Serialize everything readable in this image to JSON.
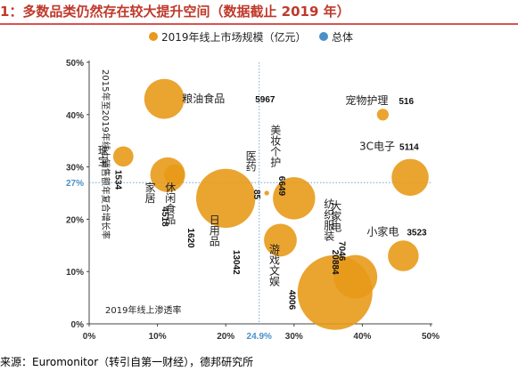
{
  "header": {
    "title": "1：多数品类仍然存在较大提升空间（数据截止 2019 年）"
  },
  "footer": {
    "source": "来源：Euromonitor（转引自第一财经），德邦研究所"
  },
  "colors": {
    "bubble": "#e89a1a",
    "overall": "#4a90c8",
    "refline": "#6aa9d6"
  },
  "chart_data": {
    "type": "scatter",
    "legend": [
      {
        "name": "2019年线上市场规模（亿元）",
        "icon": "orange-dot"
      },
      {
        "name": "总体",
        "icon": "blue-dot"
      }
    ],
    "xlabel": "2019年线上渗透率",
    "ylabel": "2015年至2019年线上销售额年复合增长率",
    "x_ticks": [
      "0%",
      "10%",
      "20%",
      "30%",
      "40%",
      "50%"
    ],
    "y_ticks": [
      "0%",
      "10%",
      "20%",
      "30%",
      "40%",
      "50%"
    ],
    "xlim": [
      0,
      50
    ],
    "ylim": [
      0,
      50
    ],
    "overall": {
      "x": 24.9,
      "y": 27,
      "x_label": "24.9%",
      "y_label": "27%"
    },
    "points": [
      {
        "name": "粮油食品",
        "x": 11,
        "y": 43,
        "size": 5967,
        "size_label": "5967"
      },
      {
        "name": "珠宝",
        "x": 5,
        "y": 32,
        "size": 1534,
        "size_label": "1534"
      },
      {
        "name": "家居",
        "x": 11.5,
        "y": 28.5,
        "size": 4518,
        "size_label": "4518"
      },
      {
        "name": "休闲食品",
        "x": 12.5,
        "y": 28.5,
        "size": 1620,
        "size_label": "1620"
      },
      {
        "name": "日用品",
        "x": 20,
        "y": 24,
        "size": 13042,
        "size_label": "13042"
      },
      {
        "name": "医药",
        "x": 26,
        "y": 25,
        "size": 85,
        "size_label": "85"
      },
      {
        "name": "美妆个护",
        "x": 30,
        "y": 24,
        "size": 6649,
        "size_label": "6649"
      },
      {
        "name": "游戏文娱",
        "x": 28,
        "y": 16,
        "size": 4006,
        "size_label": "4006"
      },
      {
        "name": "纺织服装",
        "x": 36,
        "y": 6,
        "size": 20884,
        "size_label": "20884"
      },
      {
        "name": "大家电",
        "x": 39,
        "y": 9,
        "size": 7046,
        "size_label": "7046"
      },
      {
        "name": "宠物护理",
        "x": 43,
        "y": 40,
        "size": 516,
        "size_label": "516"
      },
      {
        "name": "3C电子",
        "x": 47,
        "y": 28,
        "size": 5114,
        "size_label": "5114"
      },
      {
        "name": "小家电",
        "x": 46,
        "y": 13,
        "size": 3523,
        "size_label": "3523"
      }
    ]
  }
}
